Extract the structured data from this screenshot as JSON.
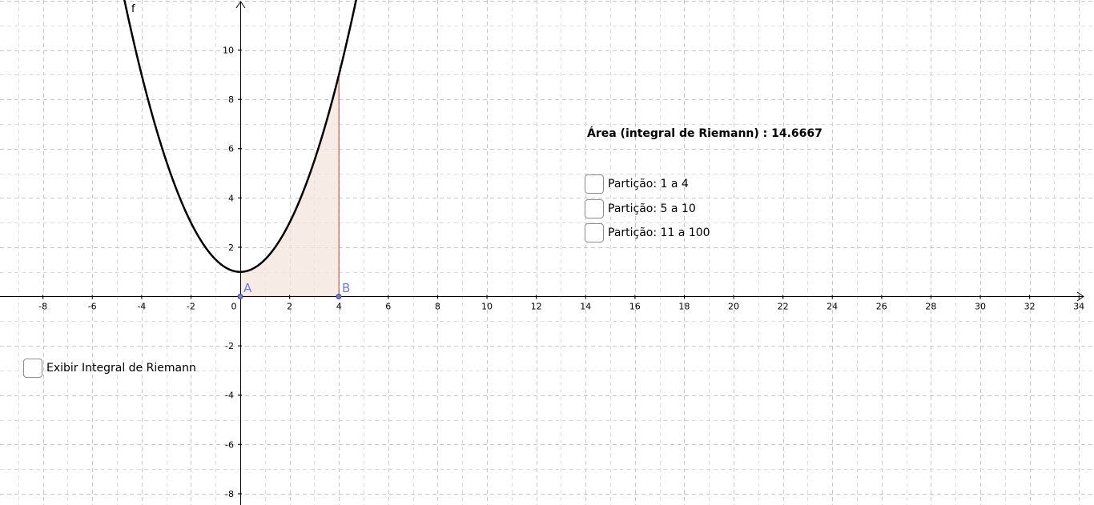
{
  "function": {
    "label": "f",
    "curve_color": "#000000"
  },
  "points": {
    "A": {
      "label": "A",
      "x": 0,
      "y": 0
    },
    "B": {
      "label": "B",
      "x": 4,
      "y": 0
    }
  },
  "area": {
    "text": "Área (integral de Riemann) : 14.6667",
    "fill_color": "#f4e4de",
    "edge_color": "#c0604a"
  },
  "checkboxes": {
    "partition_1": {
      "label": "Partição: 1 a 4",
      "checked": false
    },
    "partition_2": {
      "label": "Partição: 5 a 10",
      "checked": false
    },
    "partition_3": {
      "label": "Partição: 11 a 100",
      "checked": false
    },
    "show_riemann": {
      "label": "Exibir Integral de Riemann",
      "checked": false
    }
  },
  "axes": {
    "x_ticks": [
      "-8",
      "-6",
      "-4",
      "-2",
      "0",
      "2",
      "4",
      "6",
      "8",
      "10",
      "12",
      "14",
      "16",
      "18",
      "20",
      "22",
      "24",
      "26",
      "28",
      "30",
      "32",
      "34"
    ],
    "y_ticks": [
      "10",
      "8",
      "6",
      "4",
      "2",
      "-2",
      "-4",
      "-6",
      "-8"
    ],
    "grid": true,
    "point_color": "#6f7bd6"
  }
}
